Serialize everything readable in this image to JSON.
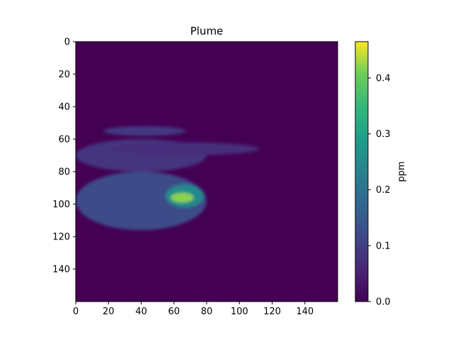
{
  "chart_data": {
    "type": "heatmap",
    "title": "Plume",
    "xlabel": "",
    "ylabel": "",
    "xlim": [
      0,
      160
    ],
    "ylim": [
      160,
      0
    ],
    "x_ticks": [
      0,
      20,
      40,
      60,
      80,
      100,
      120,
      140
    ],
    "y_ticks": [
      0,
      20,
      40,
      60,
      80,
      100,
      120,
      140
    ],
    "colormap": "viridis",
    "colorbar": {
      "label": "ppm",
      "min": 0.0,
      "max": 0.465,
      "ticks": [
        0.0,
        0.1,
        0.2,
        0.3,
        0.4
      ]
    },
    "background_value": 0.0,
    "plume_regions": [
      {
        "desc": "main body",
        "x": [
          0,
          80
        ],
        "y": [
          80,
          116
        ],
        "value": 0.12
      },
      {
        "desc": "upper sheet",
        "x": [
          0,
          80
        ],
        "y": [
          60,
          80
        ],
        "value": 0.08
      },
      {
        "desc": "thin upper streak",
        "x": [
          17,
          67
        ],
        "y": [
          52,
          58
        ],
        "value": 0.09
      },
      {
        "desc": "long streak",
        "x": [
          20,
          112
        ],
        "y": [
          62,
          70
        ],
        "value": 0.07
      },
      {
        "desc": "core",
        "x": [
          55,
          78
        ],
        "y": [
          88,
          102
        ],
        "value": 0.25
      },
      {
        "desc": "hotspot",
        "x": [
          58,
          72
        ],
        "y": [
          93,
          99
        ],
        "value": 0.42
      }
    ]
  }
}
